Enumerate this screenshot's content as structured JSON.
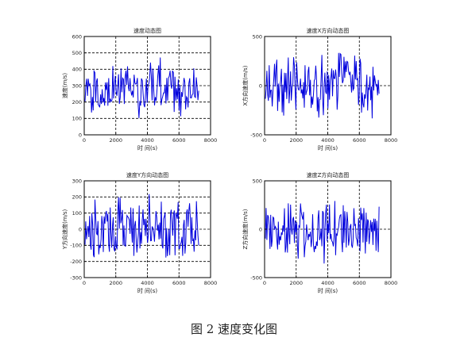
{
  "caption": "图 2  速度变化图",
  "colors": {
    "series": "#0000dd",
    "axis": "#000000"
  },
  "chart_data": [
    {
      "type": "line",
      "title": "速度动态图",
      "xlabel": "时 间(s)",
      "ylabel": "速度(m/s)",
      "xlim": [
        0,
        8000
      ],
      "ylim": [
        0,
        600
      ],
      "xticks": [
        0,
        2000,
        4000,
        6000,
        8000
      ],
      "yticks": [
        0,
        100,
        200,
        300,
        400,
        500,
        600
      ],
      "grid": true,
      "x_start": 50,
      "x_end": 7250,
      "samples": 140,
      "center": 270,
      "amp": 210,
      "seed": 11,
      "clip": [
        0,
        520
      ],
      "series": [
        {
          "values": []
        }
      ]
    },
    {
      "type": "line",
      "title": "速度X方向动态图",
      "xlabel": "时 间(s)",
      "ylabel": "X方向速度(m/s)",
      "xlim": [
        0,
        8000
      ],
      "ylim": [
        -500,
        500
      ],
      "xticks": [
        0,
        2000,
        4000,
        6000,
        8000
      ],
      "yticks": [
        -500,
        0,
        500
      ],
      "grid": true,
      "x_start": 50,
      "x_end": 7250,
      "samples": 150,
      "center": 0,
      "amp": 400,
      "seed": 23,
      "clip": [
        -480,
        480
      ],
      "series": [
        {
          "values": []
        }
      ]
    },
    {
      "type": "line",
      "title": "速度Y方向动态图",
      "xlabel": "时 间(s)",
      "ylabel": "Y方向速度(m/s)",
      "xlim": [
        0,
        8000
      ],
      "ylim": [
        -300,
        300
      ],
      "xticks": [
        0,
        2000,
        4000,
        6000,
        8000
      ],
      "yticks": [
        -300,
        -200,
        -100,
        0,
        100,
        200,
        300
      ],
      "grid": true,
      "x_start": 50,
      "x_end": 7250,
      "samples": 150,
      "center": 0,
      "amp": 240,
      "seed": 37,
      "clip": [
        -280,
        280
      ],
      "series": [
        {
          "values": []
        }
      ]
    },
    {
      "type": "line",
      "title": "速度Z方向动态图",
      "xlabel": "时 间(s)",
      "ylabel": "Z方向速度(m/s)",
      "xlim": [
        0,
        8000
      ],
      "ylim": [
        -500,
        500
      ],
      "xticks": [
        0,
        2000,
        4000,
        6000,
        8000
      ],
      "yticks": [
        -500,
        0,
        500
      ],
      "grid": true,
      "x_start": 50,
      "x_end": 7250,
      "samples": 150,
      "center": 0,
      "amp": 400,
      "seed": 53,
      "clip": [
        -470,
        470
      ],
      "series": [
        {
          "values": []
        }
      ]
    }
  ]
}
